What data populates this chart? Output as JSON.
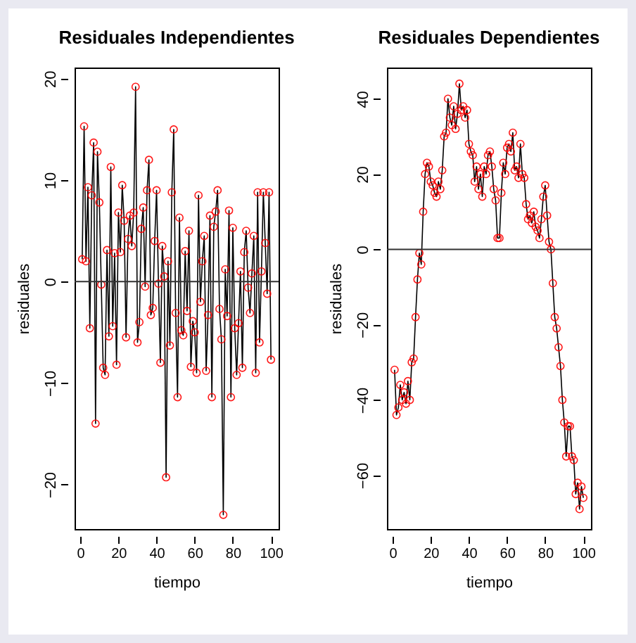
{
  "chart_data": [
    {
      "type": "line",
      "title": "Residuales Independientes",
      "xlabel": "tiempo",
      "ylabel": "residuales",
      "xlim": [
        -3,
        104
      ],
      "xticks": [
        0,
        20,
        40,
        60,
        80,
        100
      ],
      "ylim": [
        -24.4,
        21.1
      ],
      "yticks": [
        -20,
        -10,
        0,
        10,
        20
      ],
      "grid": false,
      "marker": "circle",
      "ref_lines": [
        {
          "axis": "y",
          "value": 0
        }
      ],
      "x": [
        1,
        2,
        3,
        4,
        5,
        6,
        7,
        8,
        9,
        10,
        11,
        12,
        13,
        14,
        15,
        16,
        17,
        18,
        19,
        20,
        21,
        22,
        23,
        24,
        25,
        26,
        27,
        28,
        29,
        30,
        31,
        32,
        33,
        34,
        35,
        36,
        37,
        38,
        39,
        40,
        41,
        42,
        43,
        44,
        45,
        46,
        47,
        48,
        49,
        50,
        51,
        52,
        53,
        54,
        55,
        56,
        57,
        58,
        59,
        60,
        61,
        62,
        63,
        64,
        65,
        66,
        67,
        68,
        69,
        70,
        71,
        72,
        73,
        74,
        75,
        76,
        77,
        78,
        79,
        80,
        81,
        82,
        83,
        84,
        85,
        86,
        87,
        88,
        89,
        90,
        91,
        92,
        93,
        94,
        95,
        96,
        97,
        98,
        99,
        100
      ],
      "series": [
        {
          "color": "#ff0000",
          "values": [
            2.2,
            15.3,
            2.0,
            9.3,
            -4.6,
            8.5,
            13.7,
            -14.0,
            12.8,
            7.8,
            -0.3,
            -8.5,
            -9.2,
            3.1,
            -5.4,
            11.3,
            -4.4,
            2.8,
            -8.2,
            6.8,
            2.9,
            9.5,
            6.0,
            -5.5,
            4.2,
            6.5,
            3.5,
            6.8,
            19.2,
            -6.0,
            -4.0,
            5.2,
            7.3,
            -0.5,
            9.0,
            12.0,
            -3.3,
            -2.6,
            4.0,
            9.0,
            -0.2,
            -8.0,
            3.5,
            0.5,
            -19.3,
            2.0,
            -6.3,
            8.8,
            15.0,
            -3.1,
            -11.4,
            6.3,
            -4.8,
            -5.3,
            3.0,
            -2.9,
            5.0,
            -8.4,
            -3.9,
            -5.0,
            -9.0,
            8.5,
            -2.0,
            2.0,
            4.5,
            -8.8,
            -3.3,
            6.5,
            -11.4,
            5.4,
            6.9,
            9.0,
            -2.7,
            -5.7,
            -23.0,
            1.2,
            -3.4,
            7.0,
            -11.4,
            5.3,
            -4.6,
            -9.2,
            -4.1,
            1.0,
            -8.5,
            2.9,
            5.0,
            -0.6,
            -3.1,
            0.8,
            4.5,
            -9.0,
            8.8,
            -6.0,
            1.0,
            8.8,
            3.8,
            -1.2,
            8.8,
            -7.7
          ]
        }
      ]
    },
    {
      "type": "line",
      "title": "Residuales Dependientes",
      "xlabel": "tiempo",
      "ylabel": "residuales",
      "xlim": [
        -3,
        104
      ],
      "xticks": [
        0,
        20,
        40,
        60,
        80,
        100
      ],
      "ylim": [
        -74.3,
        48.3
      ],
      "yticks": [
        -60,
        -40,
        -20,
        0,
        20,
        40
      ],
      "grid": false,
      "marker": "circle",
      "ref_lines": [
        {
          "axis": "y",
          "value": 0
        }
      ],
      "x": [
        1,
        2,
        3,
        4,
        5,
        6,
        7,
        8,
        9,
        10,
        11,
        12,
        13,
        14,
        15,
        16,
        17,
        18,
        19,
        20,
        21,
        22,
        23,
        24,
        25,
        26,
        27,
        28,
        29,
        30,
        31,
        32,
        33,
        34,
        35,
        36,
        37,
        38,
        39,
        40,
        41,
        42,
        43,
        44,
        45,
        46,
        47,
        48,
        49,
        50,
        51,
        52,
        53,
        54,
        55,
        56,
        57,
        58,
        59,
        60,
        61,
        62,
        63,
        64,
        65,
        66,
        67,
        68,
        69,
        70,
        71,
        72,
        73,
        74,
        75,
        76,
        77,
        78,
        79,
        80,
        81,
        82,
        83,
        84,
        85,
        86,
        87,
        88,
        89,
        90,
        91,
        92,
        93,
        94,
        95,
        96,
        97,
        98,
        99,
        100
      ],
      "series": [
        {
          "color": "#ff0000",
          "values": [
            -32,
            -44,
            -42,
            -36,
            -40,
            -38,
            -41,
            -35,
            -40,
            -30,
            -29,
            -18,
            -8,
            -1,
            -4,
            10,
            20,
            23,
            22,
            18,
            17,
            15,
            14,
            18,
            16,
            21,
            30,
            31,
            40,
            35,
            33,
            38,
            32,
            36,
            44,
            37,
            38,
            35,
            37,
            28,
            26,
            25,
            18,
            22,
            16,
            20,
            14,
            22,
            20,
            25,
            26,
            22,
            16,
            13,
            3,
            3,
            15,
            23,
            20,
            27,
            28,
            26,
            31,
            21,
            22,
            19,
            28,
            20,
            19,
            12,
            8,
            9,
            7,
            10,
            6,
            5,
            3,
            8,
            14,
            17,
            9,
            2,
            0,
            -9,
            -18,
            -21,
            -26,
            -31,
            -40,
            -46,
            -55,
            -47,
            -47,
            -55,
            -56,
            -65,
            -62,
            -69,
            -63,
            -66
          ]
        }
      ]
    }
  ]
}
